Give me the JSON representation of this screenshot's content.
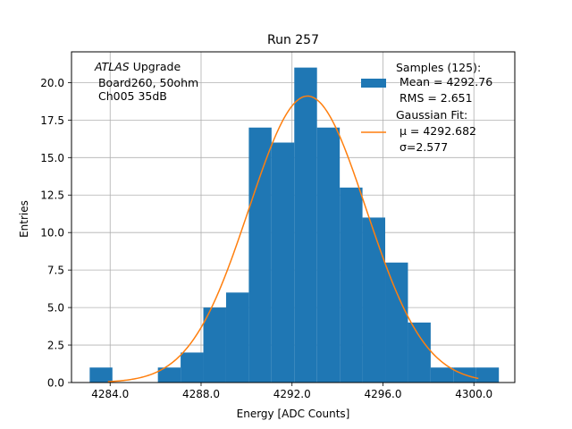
{
  "chart_data": {
    "type": "bar",
    "title": "Run 257",
    "xlabel": "Energy [ADC Counts]",
    "ylabel": "Entries",
    "xlim": [
      4282.3,
      4301.8
    ],
    "ylim": [
      0,
      22.05
    ],
    "xticks": [
      4284.0,
      4288.0,
      4292.0,
      4296.0,
      4300.0
    ],
    "xtick_labels": [
      "4284.0",
      "4288.0",
      "4292.0",
      "4296.0",
      "4300.0"
    ],
    "yticks": [
      0.0,
      2.5,
      5.0,
      7.5,
      10.0,
      12.5,
      15.0,
      17.5,
      20.0
    ],
    "ytick_labels": [
      "0.0",
      "2.5",
      "5.0",
      "7.5",
      "10.0",
      "12.5",
      "15.0",
      "17.5",
      "20.0"
    ],
    "grid": true,
    "bin_edges": [
      4283.1,
      4284.1,
      4285.1,
      4286.1,
      4287.1,
      4288.1,
      4289.1,
      4290.1,
      4291.1,
      4292.1,
      4293.1,
      4294.1,
      4295.1,
      4296.1,
      4297.1,
      4298.1,
      4299.1,
      4300.1,
      4301.1
    ],
    "counts": [
      1,
      0,
      0,
      1,
      2,
      5,
      6,
      17,
      16,
      21,
      17,
      13,
      11,
      8,
      4,
      1,
      1,
      1
    ],
    "fit": {
      "type": "gaussian",
      "mu": 4292.682,
      "sigma": 2.577,
      "amplitude": 19.1,
      "x_range": [
        4283.9,
        4300.2
      ]
    },
    "annotation": {
      "italic": "ATLAS",
      "rest": " Upgrade",
      "line2": " Board260, 50ohm",
      "line3": " Ch005 35dB"
    },
    "legend": {
      "placement": "top-right",
      "hist_label": [
        "Samples (125):",
        " Mean = 4292.76",
        " RMS = 2.651"
      ],
      "fit_label": [
        "Gaussian Fit:",
        " μ = 4292.682",
        " σ=2.577"
      ]
    },
    "colors": {
      "bars": "#1f77b4",
      "fit": "#ff7f0e",
      "grid": "#b0b0b0",
      "axis": "#000000"
    }
  }
}
